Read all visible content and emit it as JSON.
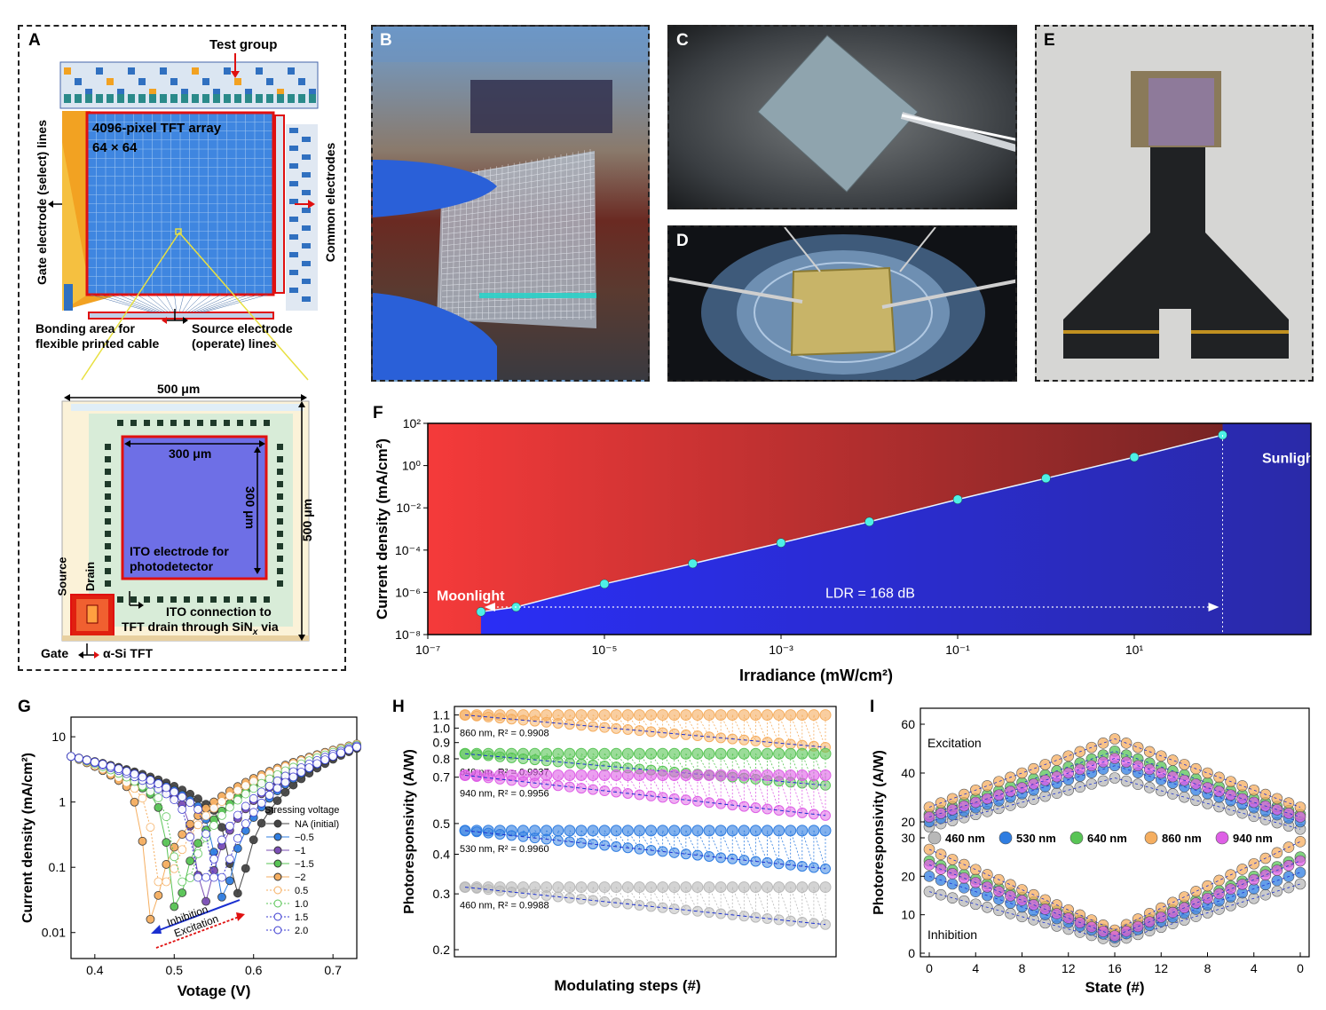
{
  "panels": {
    "A": {
      "label": "A",
      "test_group": "Test group",
      "array_title": "4096-pixel TFT array",
      "array_size": "64 × 64",
      "gate_lines": "Gate electrode (select) lines",
      "common_electrodes": "Common electrodes",
      "bonding_line1": "Bonding area for",
      "bonding_line2": "flexible printed cable",
      "source_line1": "Source electrode",
      "source_line2": "(operate) lines",
      "pixel_width": "500 μm",
      "pixel_height": "500 μm",
      "ito_width": "300 μm",
      "ito_height": "300 μm",
      "ito_line1": "ITO electrode for",
      "ito_line2": "photodetector",
      "source": "Source",
      "drain": "Drain",
      "ito_conn_line1": "ITO connection to",
      "ito_conn_line2": "TFT drain through SiN",
      "ito_conn_sub": "x",
      "ito_conn_end": " via",
      "gate": "Gate",
      "tft": "α-Si TFT"
    },
    "B": {
      "label": "B"
    },
    "C": {
      "label": "C"
    },
    "D": {
      "label": "D"
    },
    "E": {
      "label": "E"
    },
    "F": {
      "label": "F"
    },
    "G": {
      "label": "G"
    },
    "H": {
      "label": "H"
    },
    "I": {
      "label": "I"
    }
  },
  "chart_data": [
    {
      "id": "F",
      "type": "scatter",
      "xscale": "log",
      "yscale": "log",
      "xlabel": "Irradiance (mW/cm²)",
      "ylabel": "Current density (mA/cm²)",
      "xlim": [
        1e-07,
        1000
      ],
      "ylim": [
        1e-08,
        100
      ],
      "xticks": [
        {
          "v": -7,
          "label": "10⁻⁷"
        },
        {
          "v": -5,
          "label": "10⁻⁵"
        },
        {
          "v": -3,
          "label": "10⁻³"
        },
        {
          "v": -1,
          "label": "10⁻¹"
        },
        {
          "v": 1,
          "label": "10¹"
        }
      ],
      "yticks": [
        {
          "v": 2,
          "label": "10²"
        },
        {
          "v": 0,
          "label": "10⁰"
        },
        {
          "v": -2,
          "label": "10⁻²"
        },
        {
          "v": -4,
          "label": "10⁻⁴"
        },
        {
          "v": -6,
          "label": "10⁻⁶"
        },
        {
          "v": -8,
          "label": "10⁻⁸"
        }
      ],
      "x": [
        4e-07,
        1e-06,
        1e-05,
        0.0001,
        0.001,
        0.01,
        0.1,
        1,
        10,
        100
      ],
      "y": [
        1.2e-07,
        2e-07,
        2.5e-06,
        2.3e-05,
        0.00022,
        0.0022,
        0.025,
        0.25,
        2.5,
        28
      ],
      "annotations": {
        "moonlight": "Moonlight",
        "sunlight": "Sunlight",
        "ldr": "LDR = 168 dB"
      }
    },
    {
      "id": "G",
      "type": "line",
      "xscale": "linear",
      "yscale": "log",
      "xlabel": "Votage (V)",
      "ylabel": "Current density (mA/cm²)",
      "xlim": [
        0.37,
        0.73
      ],
      "ylim": [
        0.004,
        20
      ],
      "xticks": [
        0.4,
        0.5,
        0.6,
        0.7
      ],
      "yticks": [
        {
          "v": 10,
          "label": "10"
        },
        {
          "v": 1,
          "label": "1"
        },
        {
          "v": 0.1,
          "label": "0.1"
        },
        {
          "v": 0.01,
          "label": "0.01"
        }
      ],
      "legend_title": "Stressing voltage",
      "series": [
        {
          "name": "NA (initial)",
          "color": "#444444",
          "fill": true,
          "vmin": 0.574,
          "jmin": 0.04
        },
        {
          "name": "−0.5",
          "color": "#2f7de1",
          "fill": true,
          "vmin": 0.556,
          "jmin": 0.035
        },
        {
          "name": "−1",
          "color": "#7b4fb5",
          "fill": true,
          "vmin": 0.532,
          "jmin": 0.03
        },
        {
          "name": "−1.5",
          "color": "#58c455",
          "fill": true,
          "vmin": 0.496,
          "jmin": 0.025
        },
        {
          "name": "−2",
          "color": "#f5ae60",
          "fill": true,
          "vmin": 0.465,
          "jmin": 0.016
        },
        {
          "name": "0.5",
          "color": "#f5ae60",
          "fill": false,
          "vmin": 0.478,
          "jmin": 0.06
        },
        {
          "name": "1.0",
          "color": "#58c455",
          "fill": false,
          "vmin": 0.503,
          "jmin": 0.06
        },
        {
          "name": "1.5",
          "color": "#3a3ad0",
          "fill": false,
          "vmin": 0.528,
          "jmin": 0.07
        },
        {
          "name": "2.0",
          "color": "#3a3ad0",
          "fill": false,
          "vmin": 0.55,
          "jmin": 0.07
        }
      ],
      "annotations": {
        "inhibition": "Inhibition",
        "excitation": "Excitation"
      }
    },
    {
      "id": "H",
      "type": "scatter",
      "xlabel": "Modulating steps (#)",
      "ylabel": "Photoresponsivity (A/W)",
      "yscale": "log",
      "ylim": [
        0.19,
        1.17
      ],
      "yticks": [
        1.1,
        1.0,
        0.9,
        0.8,
        0.7,
        0.5,
        0.4,
        0.3,
        0.2
      ],
      "steps": 32,
      "series": [
        {
          "name": "860 nm",
          "r2": "0.9908",
          "color": "#f5ae60",
          "top": 1.1,
          "start": 1.1,
          "end": 0.87
        },
        {
          "name": "640 nm",
          "r2": "0.9937",
          "color": "#58c455",
          "top": 0.83,
          "start": 0.83,
          "end": 0.66
        },
        {
          "name": "940 nm",
          "r2": "0.9956",
          "color": "#de5fe6",
          "top": 0.71,
          "start": 0.71,
          "end": 0.53
        },
        {
          "name": "530 nm",
          "r2": "0.9960",
          "color": "#2f7de1",
          "top": 0.475,
          "start": 0.475,
          "end": 0.36
        },
        {
          "name": "460 nm",
          "r2": "0.9988",
          "color": "#b8b8b8",
          "top": 0.315,
          "start": 0.315,
          "end": 0.24
        }
      ],
      "r2_prefix": ", R² = "
    },
    {
      "id": "I",
      "type": "scatter",
      "xlabel": "State (#)",
      "ylabel": "Photoresponsivity (A/W)",
      "xticks": [
        "0",
        "4",
        "8",
        "12",
        "16",
        "12",
        "8",
        "4",
        "0"
      ],
      "yticks_top": [
        60,
        40,
        20
      ],
      "yticks_bottom": [
        30,
        20,
        10,
        0
      ],
      "legend": [
        "460 nm",
        "530 nm",
        "640 nm",
        "860 nm",
        "940 nm"
      ],
      "excitation_label": "Excitation",
      "inhibition_label": "Inhibition",
      "series": [
        {
          "name": "460 nm",
          "color": "#b8b8b8",
          "exc_start": 18,
          "exc_peak": 38,
          "exc_end": 17,
          "inh_start": 16,
          "inh_min": 3,
          "inh_end": 18
        },
        {
          "name": "530 nm",
          "color": "#2f7de1",
          "exc_start": 20,
          "exc_peak": 43,
          "exc_end": 20,
          "inh_start": 20,
          "inh_min": 4,
          "inh_end": 21
        },
        {
          "name": "640 nm",
          "color": "#58c455",
          "exc_start": 23,
          "exc_peak": 49,
          "exc_end": 23,
          "inh_start": 24,
          "inh_min": 5,
          "inh_end": 25
        },
        {
          "name": "860 nm",
          "color": "#f5ae60",
          "exc_start": 26,
          "exc_peak": 54,
          "exc_end": 26,
          "inh_start": 27,
          "inh_min": 6,
          "inh_end": 29
        },
        {
          "name": "940 nm",
          "color": "#de5fe6",
          "exc_start": 22,
          "exc_peak": 46,
          "exc_end": 22,
          "inh_start": 23,
          "inh_min": 4.5,
          "inh_end": 24
        }
      ]
    }
  ]
}
